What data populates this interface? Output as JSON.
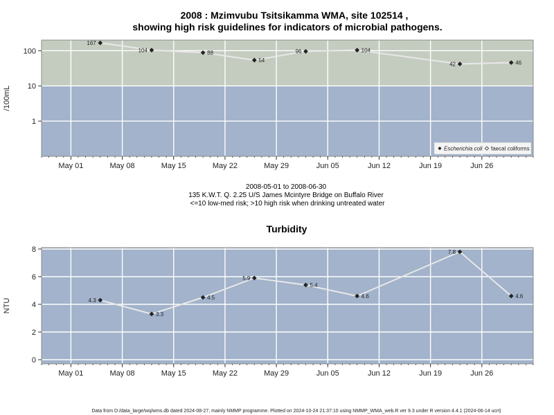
{
  "title_line1": "2008 : Mzimvubu Tsitsikamma WMA, site 102514 ,",
  "title_line2": "showing high risk guidelines for indicators of microbial pathogens.",
  "date_range": "2008-05-01 to 2008-06-30",
  "site_desc": "135 K.W.T. Q. 2.25 U/S James Mcintyre Bridge on Buffalo River",
  "risk_note": "<=10 low-med risk; >10 high risk when drinking untreated water",
  "footer": "Data from D:/data_large/wq/wms.db dated 2024-08-27, mainly NMMP programme. Plotted on 2024-10-24 21:37:10 using NMMP_WMA_web.R ver 9.3 under R version 4.4.1 (2024-06-14 ucrt)",
  "colors": {
    "high_risk_band": "#c4ccc0",
    "low_risk_band": "#a2b3cb",
    "series_line": "#e8e8e8",
    "marker": "#222222"
  },
  "chart_data": [
    {
      "type": "line",
      "title": "",
      "ylabel": "/100mL",
      "yscale": "log",
      "ylim": [
        0.1,
        200
      ],
      "yticks": [
        1,
        10,
        100
      ],
      "ytick_labels": [
        "1",
        "10",
        "100"
      ],
      "threshold": 10,
      "xlim": [
        "2008-04-27",
        "2008-07-03"
      ],
      "xtick_labels": [
        {
          "date": "2008-05-01",
          "label": "May 01"
        },
        {
          "date": "2008-05-08",
          "label": "May 08"
        },
        {
          "date": "2008-05-15",
          "label": "May 15"
        },
        {
          "date": "2008-05-22",
          "label": "May 22"
        },
        {
          "date": "2008-05-29",
          "label": "May 29"
        },
        {
          "date": "2008-06-05",
          "label": "Jun 05"
        },
        {
          "date": "2008-06-12",
          "label": "Jun 12"
        },
        {
          "date": "2008-06-19",
          "label": "Jun 19"
        },
        {
          "date": "2008-06-26",
          "label": "Jun 26"
        }
      ],
      "legend_position": "bottom-right",
      "legend": [
        {
          "label": "Escherichia coli",
          "marker": "filled-diamond"
        },
        {
          "label": "faecal coliforms",
          "marker": "open-diamond"
        }
      ],
      "series": [
        {
          "name": "Escherichia coli",
          "points": [
            {
              "date": "2008-05-05",
              "value": 167,
              "label": "167",
              "side": "left"
            },
            {
              "date": "2008-05-12",
              "value": 104,
              "label": "104",
              "side": "left"
            },
            {
              "date": "2008-05-19",
              "value": 88,
              "label": "88",
              "side": "right"
            },
            {
              "date": "2008-05-26",
              "value": 54,
              "label": "54",
              "side": "right"
            },
            {
              "date": "2008-06-02",
              "value": 96,
              "label": "96",
              "side": "left"
            },
            {
              "date": "2008-06-09",
              "value": 104,
              "label": "104",
              "side": "right"
            },
            {
              "date": "2008-06-23",
              "value": 42,
              "label": "42",
              "side": "left"
            },
            {
              "date": "2008-06-30",
              "value": 46,
              "label": "46",
              "side": "right"
            }
          ]
        }
      ]
    },
    {
      "type": "line",
      "title": "Turbidity",
      "ylabel": "NTU",
      "yscale": "linear",
      "ylim": [
        -0.3,
        8.1
      ],
      "yticks": [
        0,
        2,
        4,
        6,
        8
      ],
      "ytick_labels": [
        "0",
        "2",
        "4",
        "6",
        "8"
      ],
      "xlim": [
        "2008-04-27",
        "2008-07-03"
      ],
      "xtick_labels": [
        {
          "date": "2008-05-01",
          "label": "May 01"
        },
        {
          "date": "2008-05-08",
          "label": "May 08"
        },
        {
          "date": "2008-05-15",
          "label": "May 15"
        },
        {
          "date": "2008-05-22",
          "label": "May 22"
        },
        {
          "date": "2008-05-29",
          "label": "May 29"
        },
        {
          "date": "2008-06-05",
          "label": "Jun 05"
        },
        {
          "date": "2008-06-12",
          "label": "Jun 12"
        },
        {
          "date": "2008-06-19",
          "label": "Jun 19"
        },
        {
          "date": "2008-06-26",
          "label": "Jun 26"
        }
      ],
      "series": [
        {
          "points": [
            {
              "date": "2008-05-05",
              "value": 4.3,
              "label": "4.3",
              "side": "left"
            },
            {
              "date": "2008-05-12",
              "value": 3.3,
              "label": "3.3",
              "side": "right"
            },
            {
              "date": "2008-05-19",
              "value": 4.5,
              "label": "4.5",
              "side": "right"
            },
            {
              "date": "2008-05-26",
              "value": 5.9,
              "label": "5.9",
              "side": "left"
            },
            {
              "date": "2008-06-02",
              "value": 5.4,
              "label": "5.4",
              "side": "right"
            },
            {
              "date": "2008-06-09",
              "value": 4.6,
              "label": "4.6",
              "side": "right"
            },
            {
              "date": "2008-06-23",
              "value": 7.8,
              "label": "7.8",
              "side": "left"
            },
            {
              "date": "2008-06-30",
              "value": 4.6,
              "label": "4.6",
              "side": "right"
            }
          ]
        }
      ]
    }
  ]
}
